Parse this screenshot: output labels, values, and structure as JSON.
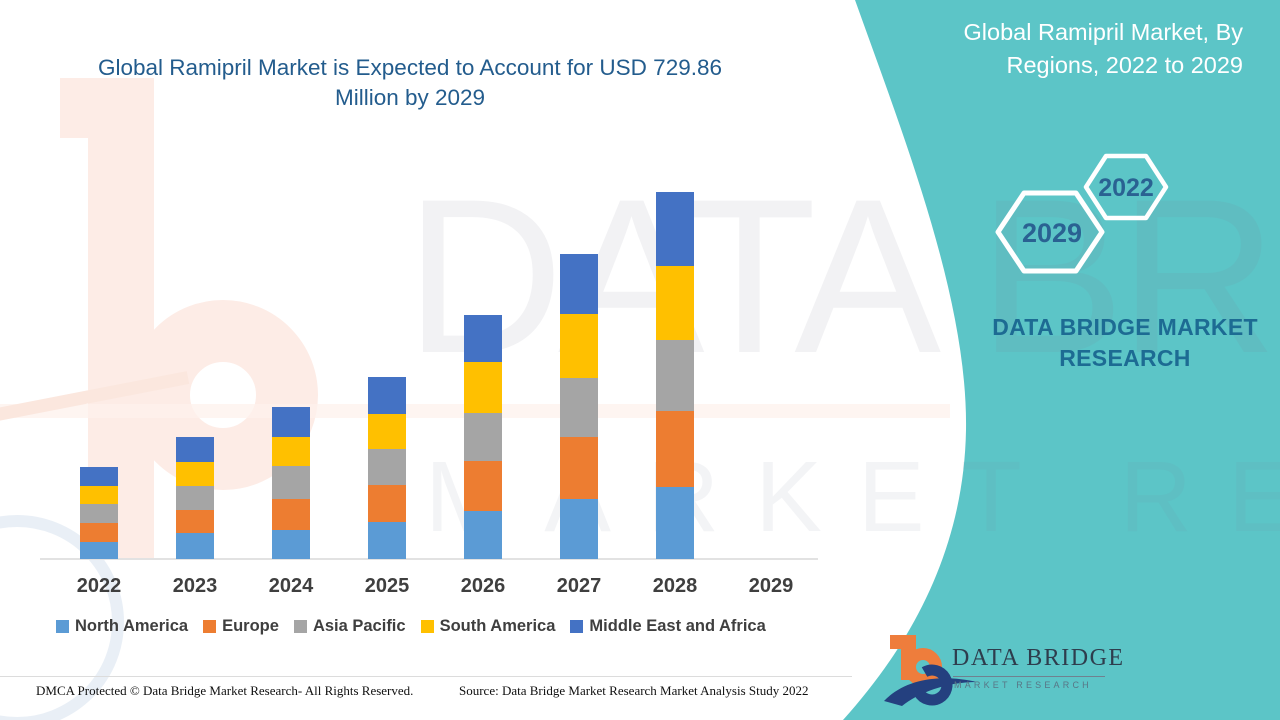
{
  "header": {
    "title_line1": "Global Ramipril Market is Expected to Account for USD 729.86",
    "title_line2": "Million by 2029",
    "title_color": "#235c8d"
  },
  "side_panel": {
    "panel_color": "#5cc5c7",
    "heading_line1": "Global Ramipril Market,  By",
    "heading_line2": "Regions, 2022 to 2029",
    "hexagons": [
      {
        "label": "2029"
      },
      {
        "label": "2022"
      }
    ],
    "hex_label_color": "#2a6292",
    "brand_line1": "DATA BRIDGE MARKET",
    "brand_line2": "RESEARCH",
    "brand_color": "#1d6b93"
  },
  "watermark": {
    "line1": "DATA BRIDGE",
    "line2": "MARKET RESEARCH"
  },
  "chart_data": {
    "type": "bar",
    "stacked": true,
    "title": "Global Ramipril Market, By Regions, 2022 to 2029",
    "headline_value_note": "USD 729.86 Million by 2029",
    "categories": [
      "2022",
      "2023",
      "2024",
      "2025",
      "2026",
      "2027",
      "2028",
      "2029"
    ],
    "series": [
      {
        "name": "North America",
        "color": "#5B9BD5",
        "values": [
          17,
          26,
          29,
          37,
          48,
          60,
          72,
          0
        ]
      },
      {
        "name": "Europe",
        "color": "#ED7D31",
        "values": [
          19,
          23,
          31,
          37,
          50,
          62,
          76,
          0
        ]
      },
      {
        "name": "Asia Pacific",
        "color": "#A5A5A5",
        "values": [
          19,
          24,
          33,
          36,
          48,
          59,
          71,
          0
        ]
      },
      {
        "name": "South America",
        "color": "#FFC000",
        "values": [
          18,
          24,
          29,
          35,
          51,
          64,
          74,
          0
        ]
      },
      {
        "name": "Middle East and Africa",
        "color": "#4472C4",
        "values": [
          19,
          25,
          30,
          37,
          47,
          60,
          74,
          0
        ]
      }
    ],
    "value_axis": "none shown - values are relative stacked-segment heights in pixels; no bar drawn for 2029",
    "xlabel": "",
    "ylabel": "",
    "grid": false,
    "legend_position": "bottom"
  },
  "footer": {
    "left": "DMCA Protected © Data Bridge Market Research- All Rights Reserved.",
    "right": "Source: Data Bridge Market Research Market Analysis Study 2022"
  },
  "logo": {
    "wordmark": "DATA BRIDGE",
    "subtext": "MARKET  RESEARCH"
  }
}
